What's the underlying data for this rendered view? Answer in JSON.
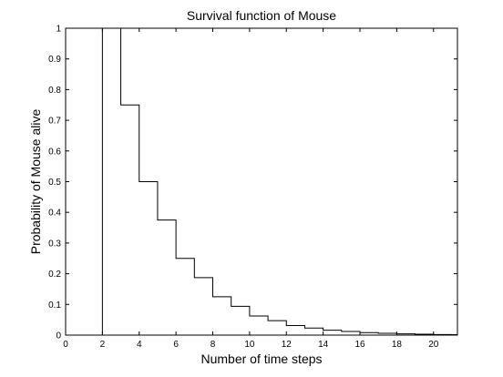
{
  "chart_data": {
    "type": "line",
    "subtype": "step",
    "title": "Survival function of Mouse",
    "xlabel": "Number of time steps",
    "ylabel": "Probability of Mouse alive",
    "xlim": [
      0,
      21.3
    ],
    "ylim": [
      0,
      1
    ],
    "grid": false,
    "x_ticks": [
      "0",
      "2",
      "4",
      "6",
      "8",
      "10",
      "12",
      "14",
      "16",
      "18",
      "20"
    ],
    "y_ticks": [
      "0",
      "0.1",
      "0.2",
      "0.3",
      "0.4",
      "0.5",
      "0.6",
      "0.7",
      "0.8",
      "0.9",
      "1"
    ],
    "series": [
      {
        "color": "#000000",
        "x": [
          2,
          3,
          4,
          5,
          6,
          7,
          8,
          9,
          10,
          11,
          12,
          13,
          14,
          15,
          16,
          17,
          18,
          19,
          20,
          21,
          21.3
        ],
        "y": [
          1,
          0.75,
          0.5,
          0.375,
          0.25,
          0.1875,
          0.125,
          0.094,
          0.0625,
          0.047,
          0.031,
          0.023,
          0.016,
          0.012,
          0.008,
          0.006,
          0.004,
          0.003,
          0.002,
          0.0015,
          0.0015
        ]
      }
    ]
  }
}
